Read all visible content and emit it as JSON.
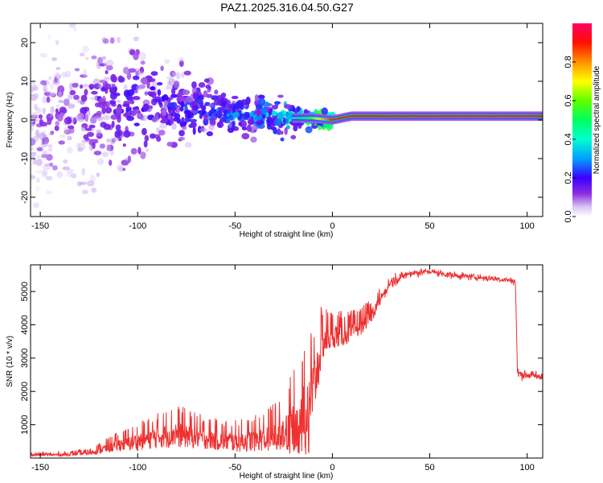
{
  "title": "PAZ1.2025.316.04.50.G27",
  "chart_data": [
    {
      "type": "heatmap",
      "xlabel": "Height of straight line (km)",
      "ylabel": "Frequency (Hz)",
      "xlim": [
        -155,
        108
      ],
      "ylim": [
        -25,
        25
      ],
      "xticks": [
        -150,
        -100,
        -50,
        0,
        50,
        100
      ],
      "yticks": [
        20,
        10,
        0,
        -10,
        -20
      ],
      "colorbar": {
        "label": "Normalized spectral amplitude",
        "range": [
          0,
          1
        ],
        "ticks": [
          "0.0",
          "0.2",
          "0.4",
          "0.6",
          "0.8"
        ],
        "colors": [
          "#ffffff",
          "#d8c4f4",
          "#8a2be2",
          "#5a00ff",
          "#0000ff",
          "#00c8ff",
          "#00ff80",
          "#40ff00",
          "#ffff00",
          "#ff8000",
          "#ff0000",
          "#ff0066"
        ]
      },
      "ridge": {
        "description_points_x": [
          -150,
          -120,
          -100,
          -80,
          -60,
          -40,
          -20,
          -10,
          0,
          10,
          50,
          100,
          108
        ],
        "center_frequency_hz": [
          0,
          3,
          4,
          3,
          2,
          1,
          0.5,
          0.5,
          0,
          1,
          1,
          1,
          1
        ],
        "amplitude": [
          0.1,
          0.15,
          0.2,
          0.2,
          0.25,
          0.3,
          0.4,
          0.6,
          0.9,
          0.9,
          0.95,
          0.95,
          0.9
        ]
      }
    },
    {
      "type": "line",
      "xlabel": "Height of straight line (km)",
      "ylabel": "SNR (10 * v/v)",
      "xlim": [
        -155,
        108
      ],
      "ylim": [
        0,
        5800
      ],
      "xticks": [
        -150,
        -100,
        -50,
        0,
        50,
        100
      ],
      "yticks": [
        1000,
        2000,
        3000,
        4000,
        5000
      ],
      "series": [
        {
          "name": "SNR",
          "color": "#ee3030",
          "x": [
            -155,
            -140,
            -125,
            -110,
            -100,
            -90,
            -80,
            -70,
            -60,
            -50,
            -40,
            -30,
            -25,
            -20,
            -15,
            -10,
            -5,
            0,
            5,
            10,
            15,
            20,
            25,
            30,
            40,
            50,
            60,
            70,
            80,
            90,
            94,
            95,
            97,
            100,
            108
          ],
          "values": [
            100,
            100,
            150,
            400,
            500,
            650,
            750,
            650,
            550,
            500,
            550,
            700,
            900,
            1000,
            1500,
            2000,
            3500,
            3700,
            3700,
            3800,
            4000,
            4300,
            4800,
            5300,
            5550,
            5600,
            5500,
            5450,
            5400,
            5350,
            5300,
            2600,
            2500,
            2500,
            2450
          ],
          "noise": [
            50,
            60,
            80,
            250,
            350,
            450,
            550,
            450,
            400,
            400,
            450,
            600,
            800,
            1000,
            1200,
            1300,
            700,
            500,
            450,
            400,
            350,
            300,
            250,
            200,
            150,
            120,
            120,
            120,
            120,
            120,
            120,
            150,
            150,
            150,
            150
          ]
        }
      ]
    }
  ]
}
